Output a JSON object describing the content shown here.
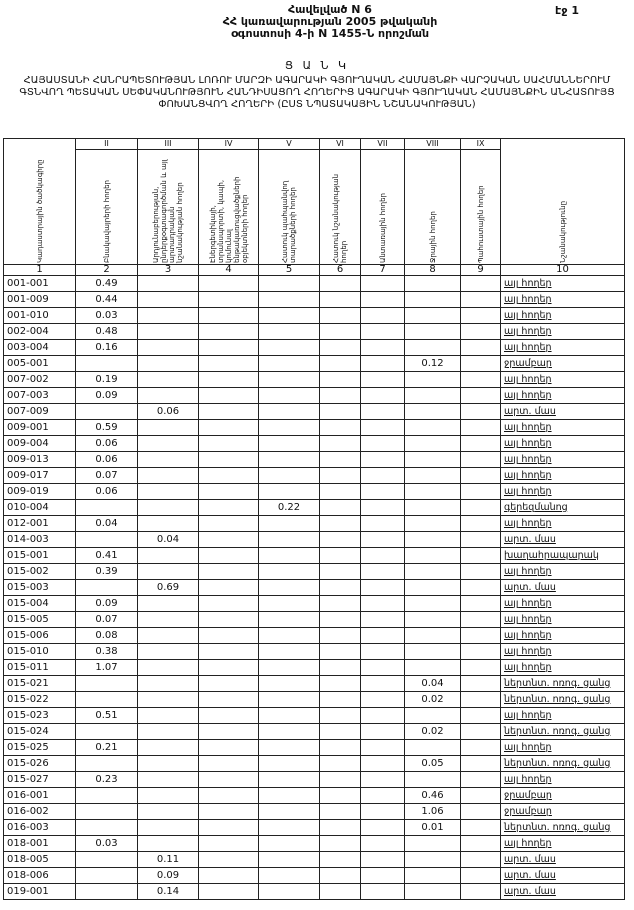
{
  "header": {
    "annex_lines": [
      "Հավելված N 6",
      "ՀՀ կառավարության 2005 թվականի",
      "օգոստոսի 4-ի N 1455-Ն որոշման"
    ],
    "page": "էջ 1",
    "list_word": "Ց Ա Ն Կ",
    "title": "ՀԱՅԱՍՏԱՆԻ ՀԱՆՐԱՊԵՏՈՒԹՅԱՆ ԼՈՌՈՒ ՄԱՐԶԻ ԱԳԱՐԱԿԻ ԳՅՈՒՂԱԿԱՆ ՀԱՄԱՅՆՔԻ ՎԱՐՉԱԿԱՆ ՍԱՀՄԱՆՆԵՐՈՒՄ ԳՏՆՎՈՂ ՊԵՏԱԿԱՆ ՍԵՓԱԿԱՆՈՒԹՅՈՒՆ ՀԱՆԴԻՍԱՑՈՂ ՀՈՂԵՐԻՑ ԱԳԱՐԱԿԻ ԳՅՈՒՂԱԿԱՆ ՀԱՄԱՅՆՔԻՆ ԱՆՀԱՏՈՒՅՑ ՓՈԽԱՆՑՎՈՂ ՀՈՂԵՐԻ (ԸՍՏ ՆՊԱՏԱԿԱՅԻՆ ՆՇԱՆԱԿՈՒԹՅԱՆ)"
  },
  "table": {
    "roman": [
      "",
      "II",
      "III",
      "IV",
      "V",
      "VI",
      "VII",
      "VIII",
      "IX",
      ""
    ],
    "headers": [
      "Կադաստրային ծածկագիրը",
      "Բնակավայրերի հողեր",
      "Արդյունաբերության, ընդերքօգտագործման և այլ արտադրական նշանակության հողեր",
      "Էներգետիկայի, տրանսպորտի, կապի, կոմունալ ենթակառուցվածքների օբյեկտների հողեր",
      "Հատուկ պահպանվող տարածքների հողեր",
      "Հատուկ նշանակության հողեր",
      "Անտառային հողեր",
      "Ջրային հողեր",
      "Պահուստային հողեր",
      "Նշանակությունը"
    ],
    "numbers": [
      "1",
      "2",
      "3",
      "4",
      "5",
      "6",
      "7",
      "8",
      "9",
      "10"
    ],
    "rows": [
      {
        "code": "001-001",
        "cells": [
          "0.49",
          "",
          "",
          "",
          "",
          "",
          "",
          ""
        ],
        "purpose": "այլ հողեր"
      },
      {
        "code": "001-009",
        "cells": [
          "0.44",
          "",
          "",
          "",
          "",
          "",
          "",
          ""
        ],
        "purpose": "այլ հողեր"
      },
      {
        "code": "001-010",
        "cells": [
          "0.03",
          "",
          "",
          "",
          "",
          "",
          "",
          ""
        ],
        "purpose": "այլ հողեր"
      },
      {
        "code": "002-004",
        "cells": [
          "0.48",
          "",
          "",
          "",
          "",
          "",
          "",
          ""
        ],
        "purpose": "այլ հողեր"
      },
      {
        "code": "003-004",
        "cells": [
          "0.16",
          "",
          "",
          "",
          "",
          "",
          "",
          ""
        ],
        "purpose": "այլ հողեր"
      },
      {
        "code": "005-001",
        "cells": [
          "",
          "",
          "",
          "",
          "",
          "",
          "0.12",
          ""
        ],
        "purpose": "ջրամբար"
      },
      {
        "code": "007-002",
        "cells": [
          "0.19",
          "",
          "",
          "",
          "",
          "",
          "",
          ""
        ],
        "purpose": "այլ հողեր"
      },
      {
        "code": "007-003",
        "cells": [
          "0.09",
          "",
          "",
          "",
          "",
          "",
          "",
          ""
        ],
        "purpose": "այլ հողեր"
      },
      {
        "code": "007-009",
        "cells": [
          "",
          "0.06",
          "",
          "",
          "",
          "",
          "",
          ""
        ],
        "purpose": "արտ. մաս"
      },
      {
        "code": "009-001",
        "cells": [
          "0.59",
          "",
          "",
          "",
          "",
          "",
          "",
          ""
        ],
        "purpose": "այլ հողեր"
      },
      {
        "code": "009-004",
        "cells": [
          "0.06",
          "",
          "",
          "",
          "",
          "",
          "",
          ""
        ],
        "purpose": "այլ հողեր"
      },
      {
        "code": "009-013",
        "cells": [
          "0.06",
          "",
          "",
          "",
          "",
          "",
          "",
          ""
        ],
        "purpose": "այլ հողեր"
      },
      {
        "code": "009-017",
        "cells": [
          "0.07",
          "",
          "",
          "",
          "",
          "",
          "",
          ""
        ],
        "purpose": "այլ հողեր"
      },
      {
        "code": "009-019",
        "cells": [
          "0.06",
          "",
          "",
          "",
          "",
          "",
          "",
          ""
        ],
        "purpose": "այլ հողեր"
      },
      {
        "code": "010-004",
        "cells": [
          "",
          "",
          "",
          "0.22",
          "",
          "",
          "",
          ""
        ],
        "purpose": "գերեզմանոց"
      },
      {
        "code": "012-001",
        "cells": [
          "0.04",
          "",
          "",
          "",
          "",
          "",
          "",
          ""
        ],
        "purpose": "այլ հողեր"
      },
      {
        "code": "014-003",
        "cells": [
          "",
          "0.04",
          "",
          "",
          "",
          "",
          "",
          ""
        ],
        "purpose": "արտ. մաս"
      },
      {
        "code": "015-001",
        "cells": [
          "0.41",
          "",
          "",
          "",
          "",
          "",
          "",
          ""
        ],
        "purpose": "խաղահրապարակ"
      },
      {
        "code": "015-002",
        "cells": [
          "0.39",
          "",
          "",
          "",
          "",
          "",
          "",
          ""
        ],
        "purpose": "այլ հողեր"
      },
      {
        "code": "015-003",
        "cells": [
          "",
          "0.69",
          "",
          "",
          "",
          "",
          "",
          ""
        ],
        "purpose": "արտ. մաս"
      },
      {
        "code": "015-004",
        "cells": [
          "0.09",
          "",
          "",
          "",
          "",
          "",
          "",
          ""
        ],
        "purpose": "այլ հողեր"
      },
      {
        "code": "015-005",
        "cells": [
          "0.07",
          "",
          "",
          "",
          "",
          "",
          "",
          ""
        ],
        "purpose": "այլ հողեր"
      },
      {
        "code": "015-006",
        "cells": [
          "0.08",
          "",
          "",
          "",
          "",
          "",
          "",
          ""
        ],
        "purpose": "այլ հողեր"
      },
      {
        "code": "015-010",
        "cells": [
          "0.38",
          "",
          "",
          "",
          "",
          "",
          "",
          ""
        ],
        "purpose": "այլ հողեր"
      },
      {
        "code": "015-011",
        "cells": [
          "1.07",
          "",
          "",
          "",
          "",
          "",
          "",
          ""
        ],
        "purpose": "այլ հողեր"
      },
      {
        "code": "015-021",
        "cells": [
          "",
          "",
          "",
          "",
          "",
          "",
          "0.04",
          ""
        ],
        "purpose": "ներտնտ. ոռոգ. ցանց"
      },
      {
        "code": "015-022",
        "cells": [
          "",
          "",
          "",
          "",
          "",
          "",
          "0.02",
          ""
        ],
        "purpose": "ներտնտ. ոռոգ. ցանց"
      },
      {
        "code": "015-023",
        "cells": [
          "0.51",
          "",
          "",
          "",
          "",
          "",
          "",
          ""
        ],
        "purpose": "այլ հողեր"
      },
      {
        "code": "015-024",
        "cells": [
          "",
          "",
          "",
          "",
          "",
          "",
          "0.02",
          ""
        ],
        "purpose": "ներտնտ. ոռոգ. ցանց"
      },
      {
        "code": "015-025",
        "cells": [
          "0.21",
          "",
          "",
          "",
          "",
          "",
          "",
          ""
        ],
        "purpose": "այլ հողեր"
      },
      {
        "code": "015-026",
        "cells": [
          "",
          "",
          "",
          "",
          "",
          "",
          "0.05",
          ""
        ],
        "purpose": "ներտնտ. ոռոգ. ցանց"
      },
      {
        "code": "015-027",
        "cells": [
          "0.23",
          "",
          "",
          "",
          "",
          "",
          "",
          ""
        ],
        "purpose": "այլ հողեր"
      },
      {
        "code": "016-001",
        "cells": [
          "",
          "",
          "",
          "",
          "",
          "",
          "0.46",
          ""
        ],
        "purpose": "ջրամբար"
      },
      {
        "code": "016-002",
        "cells": [
          "",
          "",
          "",
          "",
          "",
          "",
          "1.06",
          ""
        ],
        "purpose": "ջրամբար"
      },
      {
        "code": "016-003",
        "cells": [
          "",
          "",
          "",
          "",
          "",
          "",
          "0.01",
          ""
        ],
        "purpose": "ներտնտ. ոռոգ. ցանց"
      },
      {
        "code": "018-001",
        "cells": [
          "0.03",
          "",
          "",
          "",
          "",
          "",
          "",
          ""
        ],
        "purpose": "այլ հողեր"
      },
      {
        "code": "018-005",
        "cells": [
          "",
          "0.11",
          "",
          "",
          "",
          "",
          "",
          ""
        ],
        "purpose": "արտ. մաս"
      },
      {
        "code": "018-006",
        "cells": [
          "",
          "0.09",
          "",
          "",
          "",
          "",
          "",
          ""
        ],
        "purpose": "արտ. մաս"
      },
      {
        "code": "019-001",
        "cells": [
          "",
          "0.14",
          "",
          "",
          "",
          "",
          "",
          ""
        ],
        "purpose": "արտ. մաս"
      }
    ]
  }
}
